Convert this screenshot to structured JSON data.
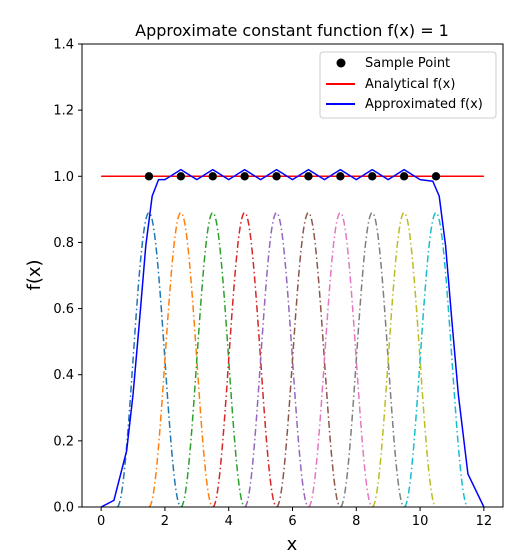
{
  "chart_data": {
    "type": "line",
    "title": "Approximate constant function f(x) = 1",
    "xlabel": "x",
    "ylabel": "f(x)",
    "xlim": [
      -0.6,
      12.6
    ],
    "ylim": [
      0.0,
      1.4
    ],
    "xticks": [
      0,
      2,
      4,
      6,
      8,
      10,
      12
    ],
    "yticks": [
      0.0,
      0.2,
      0.4,
      0.6,
      0.8,
      1.0,
      1.2,
      1.4
    ],
    "xtick_labels": [
      "0",
      "2",
      "4",
      "6",
      "8",
      "10",
      "12"
    ],
    "ytick_labels": [
      "0.0",
      "0.2",
      "0.4",
      "0.6",
      "0.8",
      "1.0",
      "1.2",
      "1.4"
    ],
    "grid": false,
    "legend_position": "top-right",
    "series": [
      {
        "name": "Sample Point",
        "kind": "scatter",
        "color": "#000000",
        "x": [
          1.5,
          2.5,
          3.5,
          4.5,
          5.5,
          6.5,
          7.5,
          8.5,
          9.5,
          10.5
        ],
        "y": [
          1,
          1,
          1,
          1,
          1,
          1,
          1,
          1,
          1,
          1
        ]
      },
      {
        "name": "Analytical f(x)",
        "kind": "line",
        "color": "#ff0000",
        "x": [
          0,
          12
        ],
        "y": [
          1,
          1
        ]
      },
      {
        "name": "Approximated f(x)",
        "kind": "line",
        "color": "#0000ff",
        "x": [
          0.0,
          0.4,
          0.8,
          1.0,
          1.2,
          1.4,
          1.6,
          1.8,
          2.0,
          2.5,
          3.0,
          3.5,
          4.0,
          4.5,
          5.0,
          5.5,
          6.0,
          6.5,
          7.0,
          7.5,
          8.0,
          8.5,
          9.0,
          9.5,
          10.0,
          10.4,
          10.6,
          10.8,
          11.0,
          11.2,
          11.5,
          12.0
        ],
        "y": [
          0.0,
          0.02,
          0.17,
          0.34,
          0.56,
          0.79,
          0.94,
          0.99,
          0.99,
          1.02,
          0.99,
          1.02,
          0.99,
          1.02,
          0.99,
          1.02,
          0.99,
          1.02,
          0.99,
          1.02,
          0.99,
          1.02,
          0.99,
          1.02,
          0.99,
          0.985,
          0.94,
          0.79,
          0.56,
          0.34,
          0.1,
          0.0
        ]
      }
    ],
    "basis_functions": {
      "kind": "dash-dot",
      "peak": 0.89,
      "centers": [
        1.5,
        2.5,
        3.5,
        4.5,
        5.5,
        6.5,
        7.5,
        8.5,
        9.5,
        10.5
      ],
      "colors": [
        "#1f77b4",
        "#ff7f0e",
        "#2ca02c",
        "#d62728",
        "#9467bd",
        "#8c564b",
        "#e377c2",
        "#7f7f7f",
        "#bcbd22",
        "#17becf"
      ]
    }
  }
}
